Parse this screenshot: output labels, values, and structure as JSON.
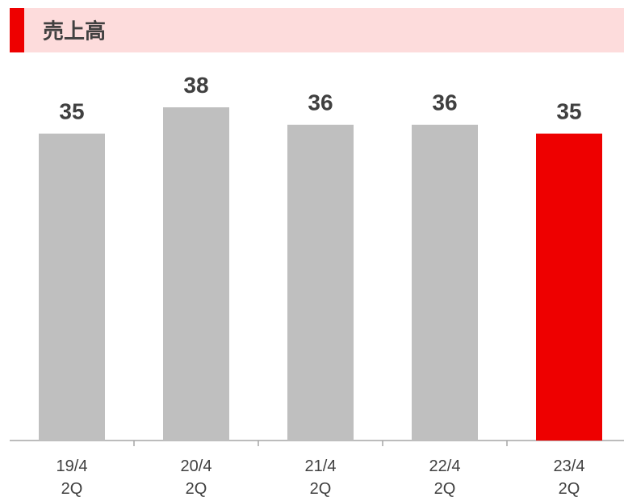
{
  "chart_data": {
    "type": "bar",
    "title": "売上高",
    "categories": [
      "19/4\n2Q",
      "20/4\n2Q",
      "21/4\n2Q",
      "22/4\n2Q",
      "23/4\n2Q"
    ],
    "values": [
      35,
      38,
      36,
      36,
      35
    ],
    "colors": [
      "#bfbfbf",
      "#bfbfbf",
      "#bfbfbf",
      "#bfbfbf",
      "#ee0000"
    ]
  }
}
